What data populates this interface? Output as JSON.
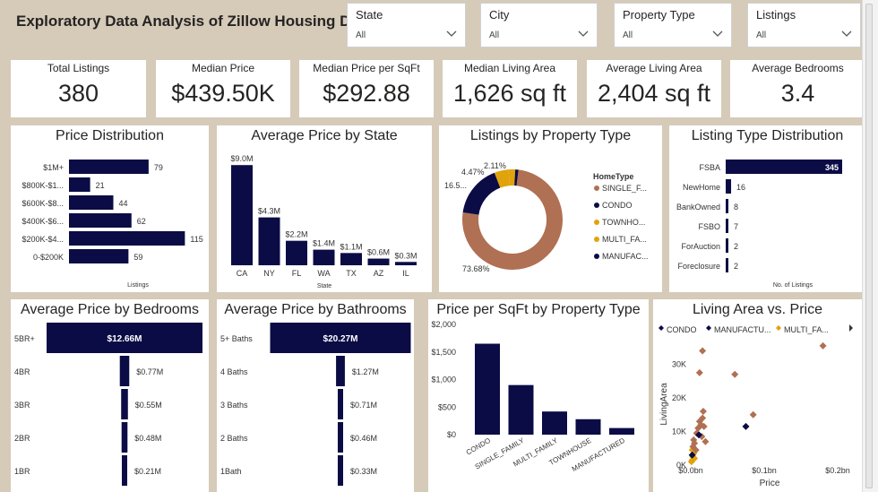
{
  "title": "Exploratory Data Analysis of Zillow Housing Data",
  "slicers": [
    {
      "label": "State",
      "value": "All"
    },
    {
      "label": "City",
      "value": "All"
    },
    {
      "label": "Property Type",
      "value": "All"
    },
    {
      "label": "Listings",
      "value": "All"
    }
  ],
  "kpis": [
    {
      "label": "Total Listings",
      "value": "380"
    },
    {
      "label": "Median Price",
      "value": "$439.50K"
    },
    {
      "label": "Median Price per SqFt",
      "value": "$292.88"
    },
    {
      "label": "Median Living Area",
      "value": "1,626 sq ft"
    },
    {
      "label": "Average Living Area",
      "value": "2,404 sq ft"
    },
    {
      "label": "Average Bedrooms",
      "value": "3.4"
    }
  ],
  "colors": {
    "navy": "#0b0c45",
    "brown": "#b07053",
    "gold": "#e0a30b",
    "gray": "#888888"
  },
  "chart_data": [
    {
      "id": "price_distribution",
      "type": "bar",
      "orientation": "horizontal",
      "title": "Price Distribution",
      "xlabel": "Listings",
      "categories": [
        "$1M+",
        "$800K-$1...",
        "$600K-$8...",
        "$400K-$6...",
        "$200K-$4...",
        "0-$200K"
      ],
      "values": [
        79,
        21,
        44,
        62,
        115,
        59
      ],
      "labels": [
        "79",
        "21",
        "44",
        "62",
        "115",
        "59"
      ],
      "xlim": [
        0,
        120
      ]
    },
    {
      "id": "avg_price_by_state",
      "type": "bar",
      "title": "Average Price by State",
      "xlabel": "State",
      "categories": [
        "CA",
        "NY",
        "FL",
        "WA",
        "TX",
        "AZ",
        "IL"
      ],
      "values": [
        9.0,
        4.3,
        2.2,
        1.4,
        1.1,
        0.6,
        0.3
      ],
      "labels": [
        "$9.0M",
        "$4.3M",
        "$2.2M",
        "$1.4M",
        "$1.1M",
        "$0.6M",
        "$0.3M"
      ],
      "ylim": [
        0,
        9.5
      ]
    },
    {
      "id": "listings_by_property_type",
      "type": "pie",
      "title": "Listings by Property Type",
      "legend_title": "HomeType",
      "legend": [
        "SINGLE_F...",
        "CONDO",
        "TOWNHO...",
        "MULTI_FA...",
        "MANUFAC..."
      ],
      "series": [
        "SINGLE_FAMILY",
        "CONDO",
        "TOWNHOUSE",
        "MULTI_FAMILY",
        "MANUFACTURED"
      ],
      "values": [
        73.68,
        16.5,
        4.47,
        2.11,
        1.0
      ],
      "labels": [
        "73.68%",
        "16.5...",
        "4.47%",
        "2.11%",
        ""
      ],
      "slice_colors": [
        "#b07053",
        "#0b0c45",
        "#e0a30b",
        "#e0a30b",
        "#0b0c45"
      ]
    },
    {
      "id": "listing_type_distribution",
      "type": "bar",
      "orientation": "horizontal",
      "title": "Listing Type Distribution",
      "xlabel": "No. of Listings",
      "categories": [
        "FSBA",
        "NewHome",
        "BankOwned",
        "FSBO",
        "ForAuction",
        "Foreclosure"
      ],
      "values": [
        345,
        16,
        8,
        7,
        2,
        2
      ],
      "labels": [
        "345",
        "16",
        "8",
        "7",
        "2",
        "2"
      ],
      "xlim": [
        0,
        345
      ]
    },
    {
      "id": "avg_price_by_bedrooms",
      "type": "bar",
      "orientation": "horizontal",
      "title": "Average Price by Bedrooms",
      "categories": [
        "5BR+",
        "4BR",
        "3BR",
        "2BR",
        "1BR"
      ],
      "values": [
        12.66,
        0.77,
        0.55,
        0.48,
        0.21
      ],
      "labels": [
        "$12.66M",
        "$0.77M",
        "$0.55M",
        "$0.48M",
        "$0.21M"
      ],
      "xlim": [
        0,
        12.66
      ]
    },
    {
      "id": "avg_price_by_bathrooms",
      "type": "bar",
      "orientation": "horizontal",
      "title": "Average Price by Bathrooms",
      "categories": [
        "5+ Baths",
        "4 Baths",
        "3 Baths",
        "2 Baths",
        "1Bath"
      ],
      "values": [
        20.27,
        1.27,
        0.71,
        0.46,
        0.33
      ],
      "labels": [
        "$20.27M",
        "$1.27M",
        "$0.71M",
        "$0.46M",
        "$0.33M"
      ],
      "xlim": [
        0,
        20.27
      ]
    },
    {
      "id": "price_per_sqft_by_type",
      "type": "bar",
      "title": "Price per SqFt by Property Type",
      "categories": [
        "CONDO",
        "SINGLE_FAMILY",
        "MULTI_FAMILY",
        "TOWNHOUSE",
        "MANUFACTURED"
      ],
      "values": [
        1650,
        900,
        420,
        280,
        120
      ],
      "yticks": [
        "$0",
        "$500",
        "$1,000",
        "$1,500",
        "$2,000"
      ],
      "ylim": [
        0,
        2000
      ]
    },
    {
      "id": "living_area_vs_price",
      "type": "scatter",
      "title": "Living Area vs. Price",
      "xlabel": "Price",
      "ylabel": "LivingArea",
      "legend": [
        "CONDO",
        "MANUFACTU...",
        "MULTI_FA..."
      ],
      "xticks": [
        "$0.0bn",
        "$0.1bn",
        "$0.2bn"
      ],
      "yticks": [
        "0K",
        "10K",
        "20K",
        "30K"
      ],
      "xlim": [
        0,
        0.2
      ],
      "ylim": [
        0,
        36
      ],
      "points": [
        {
          "x": 0.002,
          "y": 1.5,
          "c": "gold"
        },
        {
          "x": 0.003,
          "y": 2.5,
          "c": "gold"
        },
        {
          "x": 0.004,
          "y": 3.5,
          "c": "gold"
        },
        {
          "x": 0.002,
          "y": 4.5,
          "c": "gold"
        },
        {
          "x": 0.005,
          "y": 2.0,
          "c": "gold"
        },
        {
          "x": 0.001,
          "y": 1.0,
          "c": "gold"
        },
        {
          "x": 0.003,
          "y": 5.5,
          "c": "brown"
        },
        {
          "x": 0.005,
          "y": 6.5,
          "c": "brown"
        },
        {
          "x": 0.007,
          "y": 4.5,
          "c": "brown"
        },
        {
          "x": 0.004,
          "y": 7.5,
          "c": "brown"
        },
        {
          "x": 0.008,
          "y": 9.5,
          "c": "brown"
        },
        {
          "x": 0.01,
          "y": 11.0,
          "c": "brown"
        },
        {
          "x": 0.012,
          "y": 13.0,
          "c": "brown"
        },
        {
          "x": 0.014,
          "y": 12.0,
          "c": "brown"
        },
        {
          "x": 0.016,
          "y": 14.0,
          "c": "brown"
        },
        {
          "x": 0.018,
          "y": 11.5,
          "c": "brown"
        },
        {
          "x": 0.015,
          "y": 8.5,
          "c": "brown"
        },
        {
          "x": 0.02,
          "y": 7.0,
          "c": "brown"
        },
        {
          "x": 0.017,
          "y": 16.0,
          "c": "brown"
        },
        {
          "x": 0.012,
          "y": 27.5,
          "c": "brown"
        },
        {
          "x": 0.016,
          "y": 34.0,
          "c": "brown"
        },
        {
          "x": 0.06,
          "y": 27.0,
          "c": "brown"
        },
        {
          "x": 0.085,
          "y": 15.0,
          "c": "brown"
        },
        {
          "x": 0.18,
          "y": 35.5,
          "c": "brown"
        },
        {
          "x": 0.011,
          "y": 9.0,
          "c": "navy"
        },
        {
          "x": 0.002,
          "y": 3.0,
          "c": "navy"
        },
        {
          "x": 0.075,
          "y": 11.5,
          "c": "navy"
        }
      ]
    }
  ]
}
